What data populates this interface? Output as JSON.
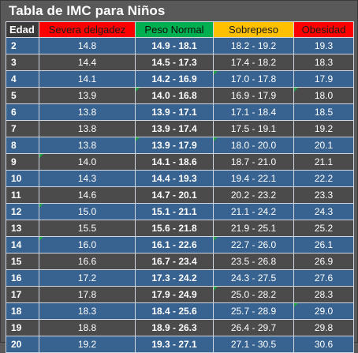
{
  "title": "Tabla de IMC para Niños",
  "headers": {
    "age": "Edad",
    "severe": "Severa delgadez",
    "normal": "Peso Normal",
    "over": "Sobrepeso",
    "obese": "Obesidad"
  },
  "colors": {
    "severe": "#ff0000",
    "normal": "#00b050",
    "over": "#ffc000",
    "obese": "#ff0000",
    "row_blue": "#386390",
    "row_dark": "#4b4b4b"
  },
  "rows": [
    {
      "age": "2",
      "severe": "14.8",
      "normal": "14.9 - 18.1",
      "over": "18.2 - 19.2",
      "obese": "19.3"
    },
    {
      "age": "3",
      "severe": "14.4",
      "normal": "14.5 - 17.3",
      "over": "17.4 - 18.2",
      "obese": "18.3"
    },
    {
      "age": "4",
      "severe": "14.1",
      "normal": "14.2 - 16.9",
      "over": "17.0 - 17.8",
      "obese": "17.9"
    },
    {
      "age": "5",
      "severe": "13.9",
      "normal": "14.0 - 16.8",
      "over": "16.9 - 17.9",
      "obese": "18.0"
    },
    {
      "age": "6",
      "severe": "13.8",
      "normal": "13.9 - 17.1",
      "over": "17.1 - 18.4",
      "obese": "18.5"
    },
    {
      "age": "7",
      "severe": "13.8",
      "normal": "13.9 - 17.4",
      "over": "17.5 - 19.1",
      "obese": "19.2"
    },
    {
      "age": "8",
      "severe": "13.8",
      "normal": "13.9 - 17.9",
      "over": "18.0 - 20.0",
      "obese": "20.1"
    },
    {
      "age": "9",
      "severe": "14.0",
      "normal": "14.1 - 18.6",
      "over": "18.7 - 21.0",
      "obese": "21.1"
    },
    {
      "age": "10",
      "severe": "14.3",
      "normal": "14.4 - 19.3",
      "over": "19.4 - 22.1",
      "obese": "22.2"
    },
    {
      "age": "11",
      "severe": "14.6",
      "normal": "14.7 - 20.1",
      "over": "20.2 - 23.2",
      "obese": "23.3"
    },
    {
      "age": "12",
      "severe": "15.0",
      "normal": "15.1 - 21.1",
      "over": "21.1 - 24.2",
      "obese": "24.3"
    },
    {
      "age": "13",
      "severe": "15.5",
      "normal": "15.6 - 21.8",
      "over": "21.9 - 25.1",
      "obese": "25.2"
    },
    {
      "age": "14",
      "severe": "16.0",
      "normal": "16.1 - 22.6",
      "over": "22.7 - 26.0",
      "obese": "26.1"
    },
    {
      "age": "15",
      "severe": "16.6",
      "normal": "16.7 - 23.4",
      "over": "23.5 - 26.8",
      "obese": "26.9"
    },
    {
      "age": "16",
      "severe": "17.2",
      "normal": "17.3 - 24.2",
      "over": "24.3 - 27.5",
      "obese": "27.6"
    },
    {
      "age": "17",
      "severe": "17.8",
      "normal": "17.9 - 24.9",
      "over": "25.0 - 28.2",
      "obese": "28.3"
    },
    {
      "age": "18",
      "severe": "18.3",
      "normal": "18.4 - 25.6",
      "over": "25.7 - 28.9",
      "obese": "29.0"
    },
    {
      "age": "19",
      "severe": "18.8",
      "normal": "18.9 - 26.3",
      "over": "26.4 - 29.7",
      "obese": "29.8"
    },
    {
      "age": "20",
      "severe": "19.2",
      "normal": "19.3 - 27.1",
      "over": "27.1 - 30.5",
      "obese": "30.6"
    }
  ]
}
